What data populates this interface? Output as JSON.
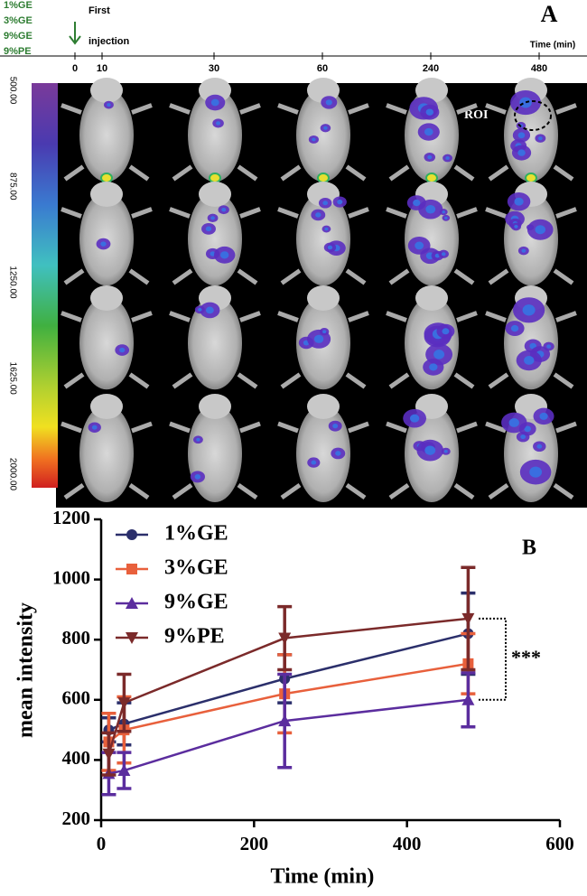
{
  "panel_a": {
    "label": "A",
    "groups": [
      "1%GE",
      "3%GE",
      "9%GE",
      "9%PE"
    ],
    "annotation": [
      "First",
      "injection"
    ],
    "axis_label": "Time (min)",
    "timepoints": [
      0,
      10,
      30,
      60,
      240,
      480
    ],
    "roi_label": "ROI",
    "colorbar": {
      "lim": [
        500,
        2000
      ],
      "ticks": [
        {
          "value": 500,
          "label": "500.00"
        },
        {
          "value": 875,
          "label": "875.00"
        },
        {
          "value": 1250,
          "label": "1250.00"
        },
        {
          "value": 1625,
          "label": "1625.00"
        },
        {
          "value": 2000,
          "label": "2000.00"
        }
      ]
    }
  },
  "chart_data": {
    "type": "line",
    "panel_label": "B",
    "x_label": "Time (min)",
    "y_label": "mean intensity",
    "xlim": [
      0,
      600
    ],
    "ylim": [
      200,
      1200
    ],
    "xticks": [
      0,
      200,
      400,
      600
    ],
    "yticks": [
      200,
      400,
      600,
      800,
      1000,
      1200
    ],
    "x": [
      10,
      30,
      240,
      480
    ],
    "series": [
      {
        "name": "1%GE",
        "color": "#2b2f6b",
        "marker": "circle",
        "values": [
          500,
          520,
          670,
          820
        ],
        "errors": [
          40,
          70,
          80,
          135
        ]
      },
      {
        "name": "3%GE",
        "color": "#e8603c",
        "marker": "square",
        "values": [
          460,
          500,
          620,
          720
        ],
        "errors": [
          95,
          110,
          130,
          100
        ]
      },
      {
        "name": "9%GE",
        "color": "#5b2d9e",
        "marker": "triangle-up",
        "values": [
          355,
          365,
          530,
          600
        ],
        "errors": [
          70,
          60,
          155,
          90
        ]
      },
      {
        "name": "9%PE",
        "color": "#7b2a2a",
        "marker": "triangle-down",
        "values": [
          420,
          590,
          805,
          870
        ],
        "errors": [
          70,
          95,
          105,
          170
        ]
      }
    ],
    "annotation": "***"
  }
}
